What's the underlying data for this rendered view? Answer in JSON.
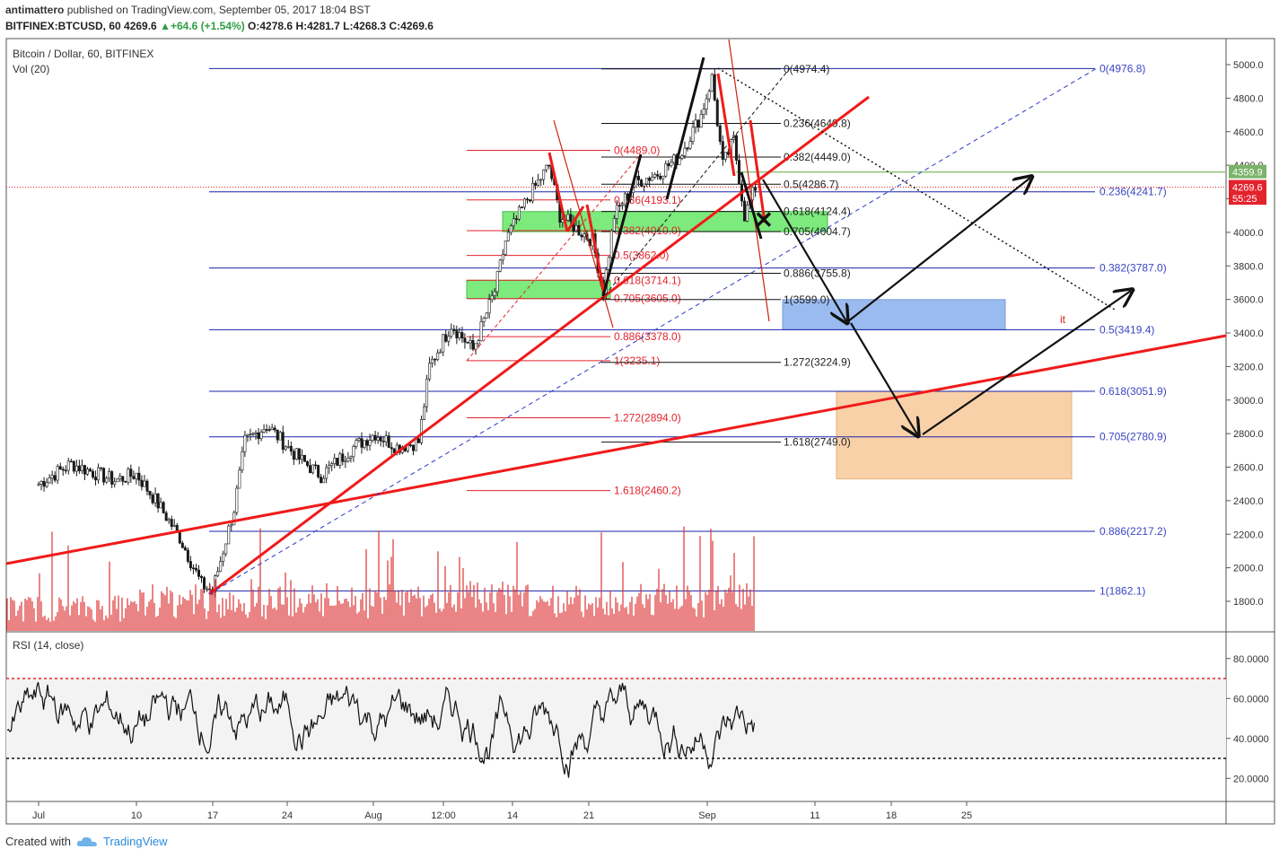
{
  "header": {
    "author": "antimattero",
    "published_text": "published on TradingView.com, September 05, 2017 18:04 BST",
    "symbol": "BITFINEX:BTCUSD, 60",
    "last": "4269.6",
    "change": "+64.6 (+1.54%)",
    "open": "O:4278.6",
    "high": "H:4281.7",
    "low": "L:4268.3",
    "close": "C:4269.6"
  },
  "footer": {
    "created_with": "Created with",
    "brand": "TradingView"
  },
  "colors": {
    "blue_fib": "#1a23a8",
    "red_fib": "#e3232c",
    "trend_red": "#f01a1a",
    "green_zone": "#6ee86e",
    "blue_zone": "#8fb4ee",
    "orange_zone": "#f8c99a",
    "candle": "#1a1a1a",
    "volume": "#d33",
    "rsi": "#111"
  },
  "chart_data": [
    {
      "type": "candlestick",
      "title": "Bitcoin / Dollar, 60, BITFINEX",
      "indicator_label": "Vol (20)",
      "ylim": [
        1650,
        5180
      ],
      "y_ticks": [
        "5000.0",
        "4800.0",
        "4600.0",
        "4400.0",
        "4200.0",
        "4000.0",
        "3800.0",
        "3600.0",
        "3400.0",
        "3200.0",
        "3000.0",
        "2800.0",
        "2600.0",
        "2400.0",
        "2200.0",
        "2000.0",
        "1800.0"
      ],
      "x_ticks": [
        "Jul",
        "10",
        "17",
        "24",
        "Aug",
        "12:00",
        "14",
        "21",
        "Sep",
        "11",
        "18",
        "25"
      ],
      "price_tags": [
        {
          "value": 4359.9,
          "label": "4359.9",
          "color": "#7bb36a"
        },
        {
          "value": 4269.6,
          "label": "4269.6",
          "color": "#e3232c"
        },
        {
          "value": 4202,
          "label": "55:25",
          "color": "#e3232c"
        }
      ],
      "fib_blue": [
        {
          "label": "0(4976.8)",
          "value": 4976.8
        },
        {
          "label": "0.236(4241.7)",
          "value": 4241.7
        },
        {
          "label": "0.382(3787.0)",
          "value": 3787.0
        },
        {
          "label": "0.5(3419.4)",
          "value": 3419.4
        },
        {
          "label": "0.618(3051.9)",
          "value": 3051.9
        },
        {
          "label": "0.705(2780.9)",
          "value": 2780.9
        },
        {
          "label": "0.886(2217.2)",
          "value": 2217.2
        },
        {
          "label": "1(1862.1)",
          "value": 1862.1
        }
      ],
      "fib_red": [
        {
          "label": "0(4489.0)",
          "value": 4489.0
        },
        {
          "label": "0.236(4193.1)",
          "value": 4193.1
        },
        {
          "label": "0.382(4010.0)",
          "value": 4010.0
        },
        {
          "label": "0.5(3862.0)",
          "value": 3862.0
        },
        {
          "label": "0.618(3714.1)",
          "value": 3714.1
        },
        {
          "label": "0.705(3605.0)",
          "value": 3605.0
        },
        {
          "label": "0.886(3378.0)",
          "value": 3378.0
        },
        {
          "label": "1(3235.1)",
          "value": 3235.1
        },
        {
          "label": "1.272(2894.0)",
          "value": 2894.0
        },
        {
          "label": "1.618(2460.2)",
          "value": 2460.2
        }
      ],
      "fib_black": [
        {
          "label": "0(4974.4)",
          "value": 4974.4
        },
        {
          "label": "0.236(4649.8)",
          "value": 4649.8
        },
        {
          "label": "0.382(4449.0)",
          "value": 4449.0
        },
        {
          "label": "0.5(4286.7)",
          "value": 4286.7
        },
        {
          "label": "0.618(4124.4)",
          "value": 4124.4
        },
        {
          "label": "0.705(4004.7)",
          "value": 4004.7
        },
        {
          "label": "0.886(3755.8)",
          "value": 3755.8
        },
        {
          "label": "1(3599.0)",
          "value": 3599.0
        },
        {
          "label": "1.272(3224.9)",
          "value": 3224.9
        },
        {
          "label": "1.618(2749.0)",
          "value": 2749.0
        }
      ],
      "green_level": 4359.9,
      "annotation": "it",
      "price_path": [
        [
          "Jul",
          2500
        ],
        [
          "Jul 4",
          2620
        ],
        [
          "Jul 8",
          2520
        ],
        [
          "Jul 10",
          2560
        ],
        [
          "Jul 12",
          2380
        ],
        [
          "Jul 14",
          2180
        ],
        [
          "Jul 16",
          1900
        ],
        [
          "Jul 17",
          1860
        ],
        [
          "Jul 19",
          2350
        ],
        [
          "Jul 20",
          2750
        ],
        [
          "Jul 22",
          2850
        ],
        [
          "Jul 25",
          2650
        ],
        [
          "Jul 27",
          2550
        ],
        [
          "Jul 30",
          2720
        ],
        [
          "Aug 1",
          2800
        ],
        [
          "Aug 3",
          2720
        ],
        [
          "Aug 5",
          2750
        ],
        [
          "Aug 6",
          3200
        ],
        [
          "Aug 8",
          3450
        ],
        [
          "Aug 10",
          3300
        ],
        [
          "Aug 12",
          3650
        ],
        [
          "Aug 13",
          3950
        ],
        [
          "Aug 15",
          4200
        ],
        [
          "Aug 17",
          4400
        ],
        [
          "Aug 18",
          4100
        ],
        [
          "Aug 19",
          4050
        ],
        [
          "Aug 21",
          3950
        ],
        [
          "Aug 22",
          3650
        ],
        [
          "Aug 23",
          4100
        ],
        [
          "Aug 25",
          4300
        ],
        [
          "Aug 27",
          4350
        ],
        [
          "Aug 29",
          4450
        ],
        [
          "Aug 31",
          4700
        ],
        [
          "Sep 1",
          4920
        ],
        [
          "Sep 2",
          4400
        ],
        [
          "Sep 3",
          4550
        ],
        [
          "Sep 4",
          4100
        ],
        [
          "Sep 5",
          4270
        ]
      ]
    },
    {
      "type": "line",
      "title": "RSI (14, close)",
      "ylim": [
        8,
        92
      ],
      "y_ticks": [
        "80.0000",
        "60.0000",
        "40.0000",
        "20.0000"
      ],
      "overbought": 70,
      "oversold": 30
    }
  ]
}
